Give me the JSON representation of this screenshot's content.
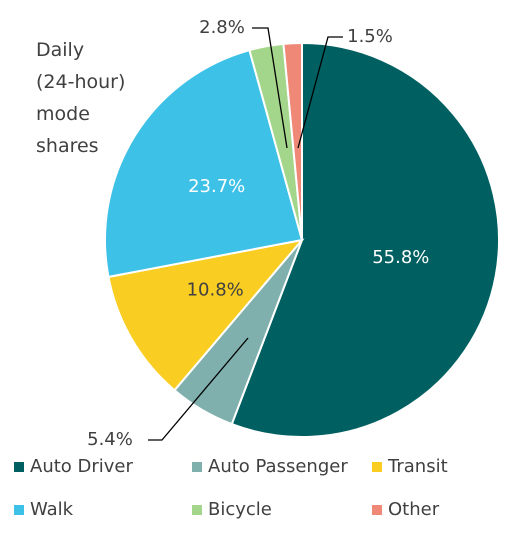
{
  "chart_data": {
    "type": "pie",
    "title": "Daily (24-hour) mode shares",
    "categories": [
      "Auto Driver",
      "Auto Passenger",
      "Transit",
      "Walk",
      "Bicycle",
      "Other"
    ],
    "values": [
      55.8,
      5.4,
      10.8,
      23.7,
      2.8,
      1.5
    ],
    "value_labels": [
      "55.8%",
      "5.4%",
      "10.8%",
      "23.7%",
      "2.8%",
      "1.5%"
    ],
    "colors": [
      "#005f60",
      "#7fb0ae",
      "#f9cd22",
      "#3dc1e6",
      "#a3d68a",
      "#f08878"
    ],
    "legend": "bottom"
  }
}
